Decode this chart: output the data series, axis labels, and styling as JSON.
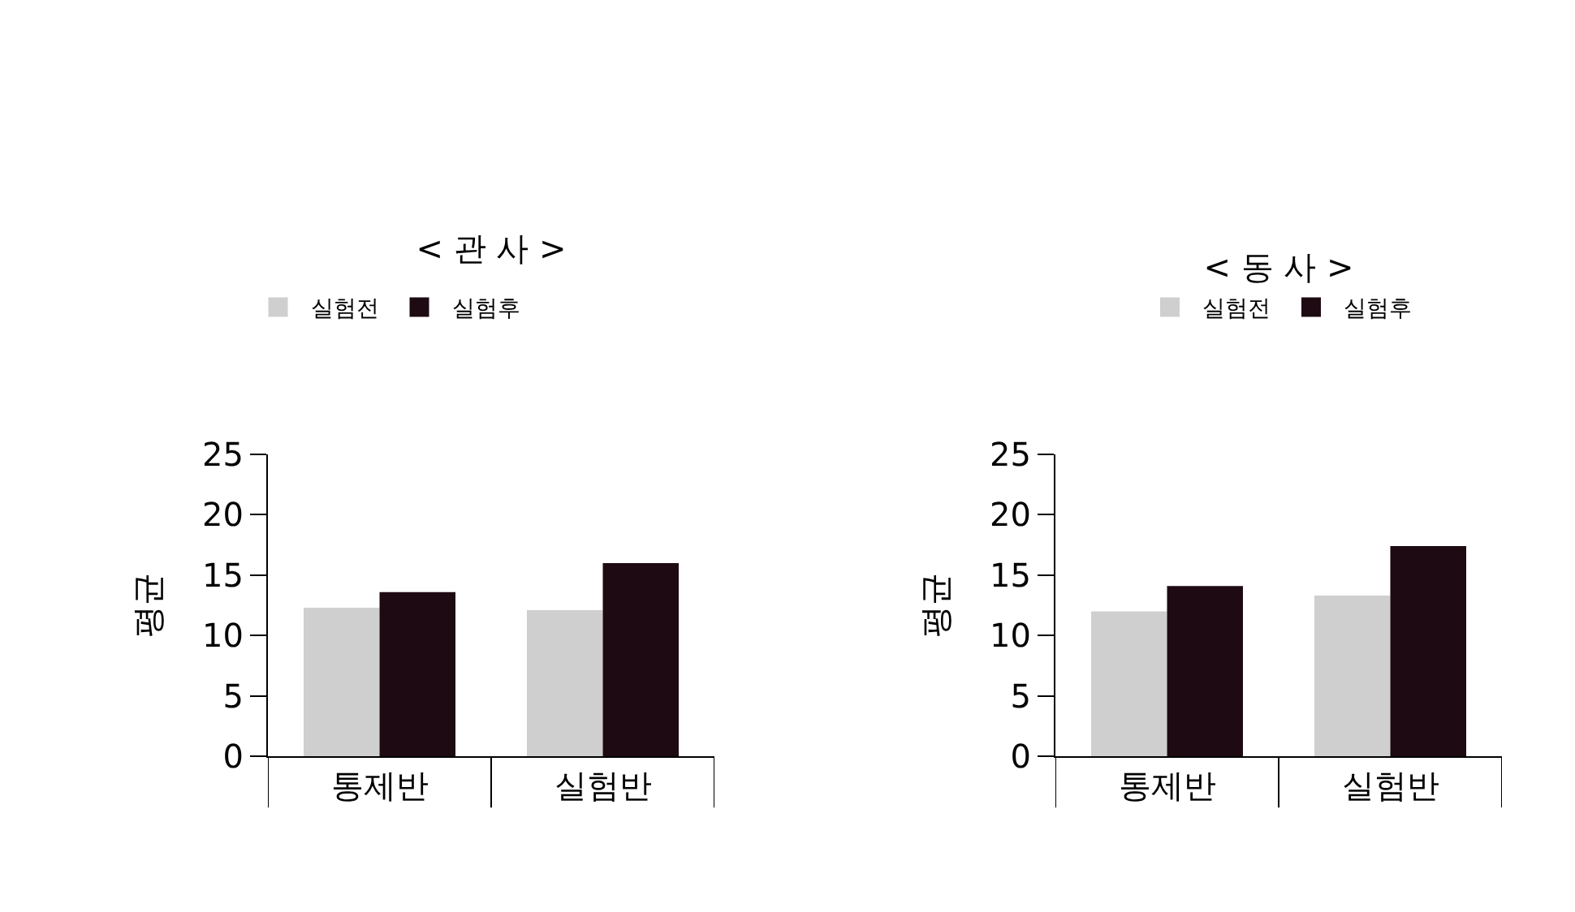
{
  "chart_data": [
    {
      "type": "bar",
      "title": "< 관 사 >",
      "ylabel": "평균",
      "categories": [
        "통제반",
        "실험반"
      ],
      "series": [
        {
          "name": "실험전",
          "color": "#cfcfcf",
          "values": [
            12.3,
            12.1
          ]
        },
        {
          "name": "실험후",
          "color": "#1e0a12",
          "values": [
            13.6,
            16.0
          ]
        }
      ],
      "ylim": [
        0,
        25
      ],
      "yticks": [
        0,
        5,
        10,
        15,
        20,
        25
      ],
      "grid": false,
      "legend": "top left"
    },
    {
      "type": "bar",
      "title": "< 동 사 >",
      "ylabel": "평균",
      "categories": [
        "통제반",
        "실험반"
      ],
      "series": [
        {
          "name": "실험전",
          "color": "#cfcfcf",
          "values": [
            12.0,
            13.3
          ]
        },
        {
          "name": "실험후",
          "color": "#1e0a12",
          "values": [
            14.1,
            17.4
          ]
        }
      ],
      "ylim": [
        0,
        25
      ],
      "yticks": [
        0,
        5,
        10,
        15,
        20,
        25
      ],
      "grid": false,
      "legend": "top"
    }
  ]
}
